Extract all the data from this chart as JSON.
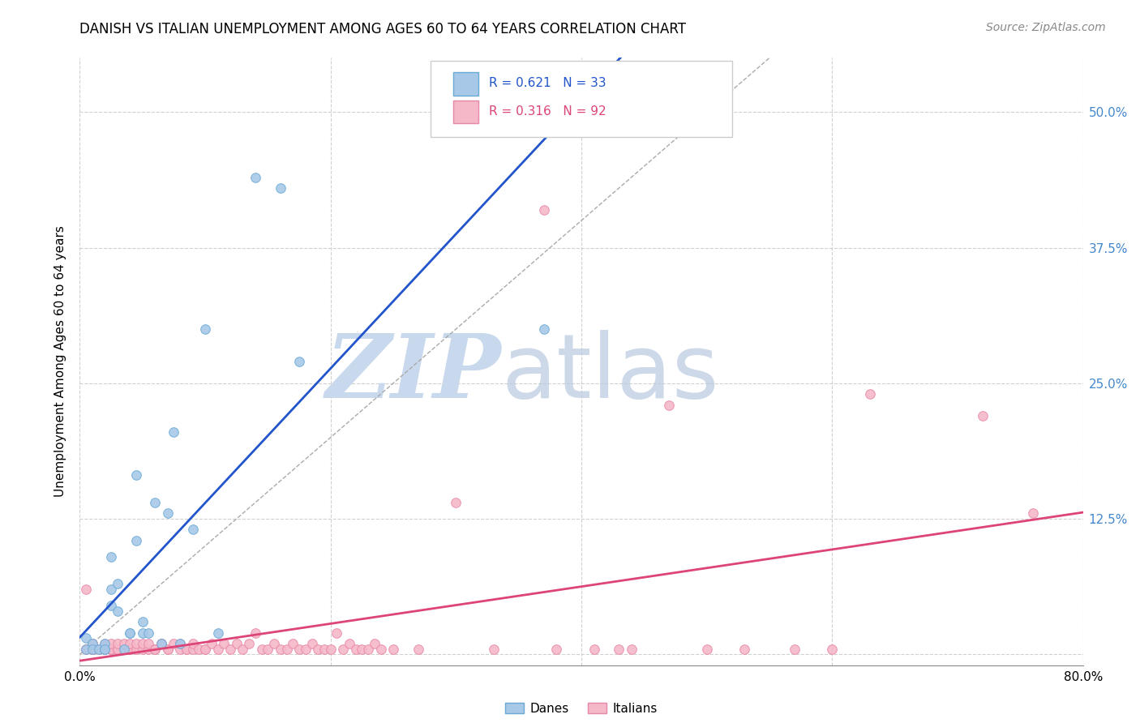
{
  "title": "DANISH VS ITALIAN UNEMPLOYMENT AMONG AGES 60 TO 64 YEARS CORRELATION CHART",
  "source": "Source: ZipAtlas.com",
  "ylabel": "Unemployment Among Ages 60 to 64 years",
  "xlim": [
    0.0,
    0.8
  ],
  "ylim": [
    -0.01,
    0.55
  ],
  "xticks": [
    0.0,
    0.2,
    0.4,
    0.6,
    0.8
  ],
  "xticklabels": [
    "0.0%",
    "",
    "",
    "",
    "80.0%"
  ],
  "yticks": [
    0.0,
    0.125,
    0.25,
    0.375,
    0.5
  ],
  "yticklabels": [
    "",
    "12.5%",
    "25.0%",
    "37.5%",
    "50.0%"
  ],
  "background_color": "#ffffff",
  "grid_color": "#d0d0d0",
  "danes_color": "#a8c8e8",
  "danes_edge_color": "#6aaad4",
  "italians_color": "#f5b8c8",
  "italians_edge_color": "#e888a8",
  "danes_line_color": "#2255cc",
  "italians_line_color": "#dd4477",
  "danes_R": 0.621,
  "danes_N": 33,
  "italians_R": 0.316,
  "italians_N": 92,
  "danes_x": [
    0.005,
    0.005,
    0.01,
    0.01,
    0.015,
    0.02,
    0.02,
    0.02,
    0.025,
    0.025,
    0.025,
    0.03,
    0.03,
    0.035,
    0.04,
    0.04,
    0.045,
    0.045,
    0.05,
    0.05,
    0.055,
    0.06,
    0.065,
    0.07,
    0.075,
    0.08,
    0.09,
    0.1,
    0.11,
    0.14,
    0.16,
    0.175,
    0.37
  ],
  "danes_y": [
    0.005,
    0.015,
    0.01,
    0.005,
    0.005,
    0.005,
    0.01,
    0.005,
    0.045,
    0.06,
    0.09,
    0.04,
    0.065,
    0.005,
    0.02,
    0.02,
    0.105,
    0.165,
    0.02,
    0.03,
    0.02,
    0.14,
    0.01,
    0.13,
    0.205,
    0.01,
    0.115,
    0.3,
    0.02,
    0.44,
    0.43,
    0.27,
    0.3
  ],
  "italians_x": [
    0.005,
    0.005,
    0.005,
    0.01,
    0.01,
    0.01,
    0.01,
    0.01,
    0.015,
    0.02,
    0.02,
    0.02,
    0.02,
    0.025,
    0.025,
    0.025,
    0.03,
    0.03,
    0.03,
    0.035,
    0.035,
    0.04,
    0.04,
    0.04,
    0.04,
    0.045,
    0.045,
    0.05,
    0.05,
    0.055,
    0.055,
    0.06,
    0.06,
    0.065,
    0.065,
    0.07,
    0.07,
    0.075,
    0.08,
    0.08,
    0.085,
    0.085,
    0.09,
    0.09,
    0.095,
    0.1,
    0.1,
    0.105,
    0.11,
    0.115,
    0.12,
    0.125,
    0.13,
    0.135,
    0.14,
    0.145,
    0.15,
    0.155,
    0.16,
    0.165,
    0.17,
    0.175,
    0.18,
    0.185,
    0.19,
    0.195,
    0.2,
    0.205,
    0.21,
    0.215,
    0.22,
    0.225,
    0.23,
    0.235,
    0.24,
    0.25,
    0.27,
    0.3,
    0.33,
    0.37,
    0.41,
    0.44,
    0.47,
    0.5,
    0.53,
    0.57,
    0.6,
    0.63,
    0.72,
    0.76,
    0.38,
    0.43
  ],
  "italians_y": [
    0.005,
    0.005,
    0.06,
    0.005,
    0.005,
    0.005,
    0.01,
    0.01,
    0.005,
    0.005,
    0.005,
    0.005,
    0.01,
    0.005,
    0.005,
    0.01,
    0.005,
    0.005,
    0.01,
    0.005,
    0.01,
    0.005,
    0.005,
    0.005,
    0.01,
    0.005,
    0.01,
    0.005,
    0.01,
    0.005,
    0.01,
    0.005,
    0.005,
    0.01,
    0.01,
    0.005,
    0.005,
    0.01,
    0.005,
    0.01,
    0.005,
    0.005,
    0.005,
    0.01,
    0.005,
    0.005,
    0.005,
    0.01,
    0.005,
    0.01,
    0.005,
    0.01,
    0.005,
    0.01,
    0.02,
    0.005,
    0.005,
    0.01,
    0.005,
    0.005,
    0.01,
    0.005,
    0.005,
    0.01,
    0.005,
    0.005,
    0.005,
    0.02,
    0.005,
    0.01,
    0.005,
    0.005,
    0.005,
    0.01,
    0.005,
    0.005,
    0.005,
    0.14,
    0.005,
    0.41,
    0.005,
    0.005,
    0.23,
    0.005,
    0.005,
    0.005,
    0.005,
    0.24,
    0.22,
    0.13,
    0.005,
    0.005
  ]
}
